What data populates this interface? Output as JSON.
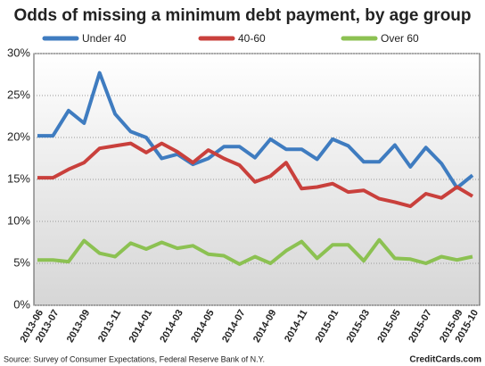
{
  "chart_data": {
    "type": "line",
    "title": "Odds of missing a minimum debt payment, by age group",
    "source": "Source: Survey of Consumer Expectations, Federal Reserve Bank of N.Y.",
    "credit": "CreditCards.com",
    "categories": [
      "2013-06",
      "2013-07",
      null,
      "2013-09",
      null,
      "2013-11",
      null,
      "2014-01",
      null,
      "2014-03",
      null,
      "2014-05",
      null,
      "2014-07",
      null,
      "2014-09",
      null,
      "2014-11",
      null,
      "2015-01",
      null,
      "2015-03",
      null,
      "2015-05",
      null,
      "2015-07",
      null,
      "2015-09",
      "2015-10"
    ],
    "series": [
      {
        "name": "Under 40",
        "color": "#3f7cc0",
        "values": [
          20.2,
          20.2,
          23.2,
          21.7,
          27.7,
          22.8,
          20.7,
          20.0,
          17.5,
          18.0,
          16.8,
          17.5,
          18.9,
          18.9,
          17.6,
          19.8,
          18.6,
          18.6,
          17.4,
          19.8,
          19.0,
          17.1,
          17.1,
          19.1,
          16.5,
          18.8,
          16.9,
          14.0,
          15.5
        ]
      },
      {
        "name": "40-60",
        "color": "#c9403c",
        "values": [
          15.2,
          15.2,
          16.2,
          17.0,
          18.7,
          19.0,
          19.3,
          18.2,
          19.3,
          18.3,
          17.0,
          18.5,
          17.5,
          16.7,
          14.7,
          15.4,
          17.0,
          13.9,
          14.1,
          14.5,
          13.5,
          13.7,
          12.7,
          12.3,
          11.8,
          13.3,
          12.8,
          14.1,
          13.0
        ]
      },
      {
        "name": "Over 60",
        "color": "#8cc152",
        "values": [
          5.4,
          5.4,
          5.2,
          7.7,
          6.2,
          5.8,
          7.4,
          6.7,
          7.5,
          6.8,
          7.1,
          6.1,
          5.9,
          4.9,
          5.8,
          5.0,
          6.5,
          7.6,
          5.6,
          7.2,
          7.2,
          5.3,
          7.8,
          5.6,
          5.5,
          5.0,
          5.8,
          5.4,
          5.8
        ]
      }
    ],
    "ylim": [
      0,
      30
    ],
    "yticks": [
      {
        "value": 0,
        "label": "0%"
      },
      {
        "value": 5,
        "label": "5%"
      },
      {
        "value": 10,
        "label": "10%"
      },
      {
        "value": 15,
        "label": "15%"
      },
      {
        "value": 20,
        "label": "20%"
      },
      {
        "value": 25,
        "label": "25%"
      },
      {
        "value": 30,
        "label": "30%"
      }
    ],
    "grid": true
  }
}
